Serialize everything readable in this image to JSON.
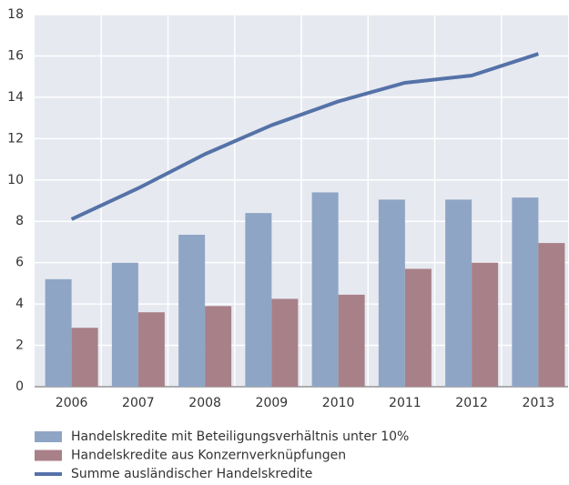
{
  "chart_data": {
    "type": "bar",
    "categories": [
      "2006",
      "2007",
      "2008",
      "2009",
      "2010",
      "2011",
      "2012",
      "2013"
    ],
    "series": [
      {
        "name": "Handelskredite mit Beteiligungsverhältnis unter 10%",
        "color": "#8fa5c5",
        "values": [
          5.2,
          6.0,
          7.35,
          8.4,
          9.4,
          9.05,
          9.05,
          9.15
        ]
      },
      {
        "name": "Handelskredite aus Konzernverknüpfungen",
        "color": "#a88088",
        "values": [
          2.85,
          3.6,
          3.9,
          4.25,
          4.45,
          5.7,
          6.0,
          6.95
        ]
      },
      {
        "name": "Summe ausländischer Handelskredite",
        "color": "#5572a8",
        "type": "line",
        "values": [
          8.1,
          9.6,
          11.25,
          12.65,
          13.8,
          14.7,
          15.05,
          16.1
        ]
      }
    ],
    "ylim": [
      0,
      18
    ],
    "yticks": [
      0,
      2,
      4,
      6,
      8,
      10,
      12,
      14,
      16,
      18
    ],
    "grid": true
  }
}
